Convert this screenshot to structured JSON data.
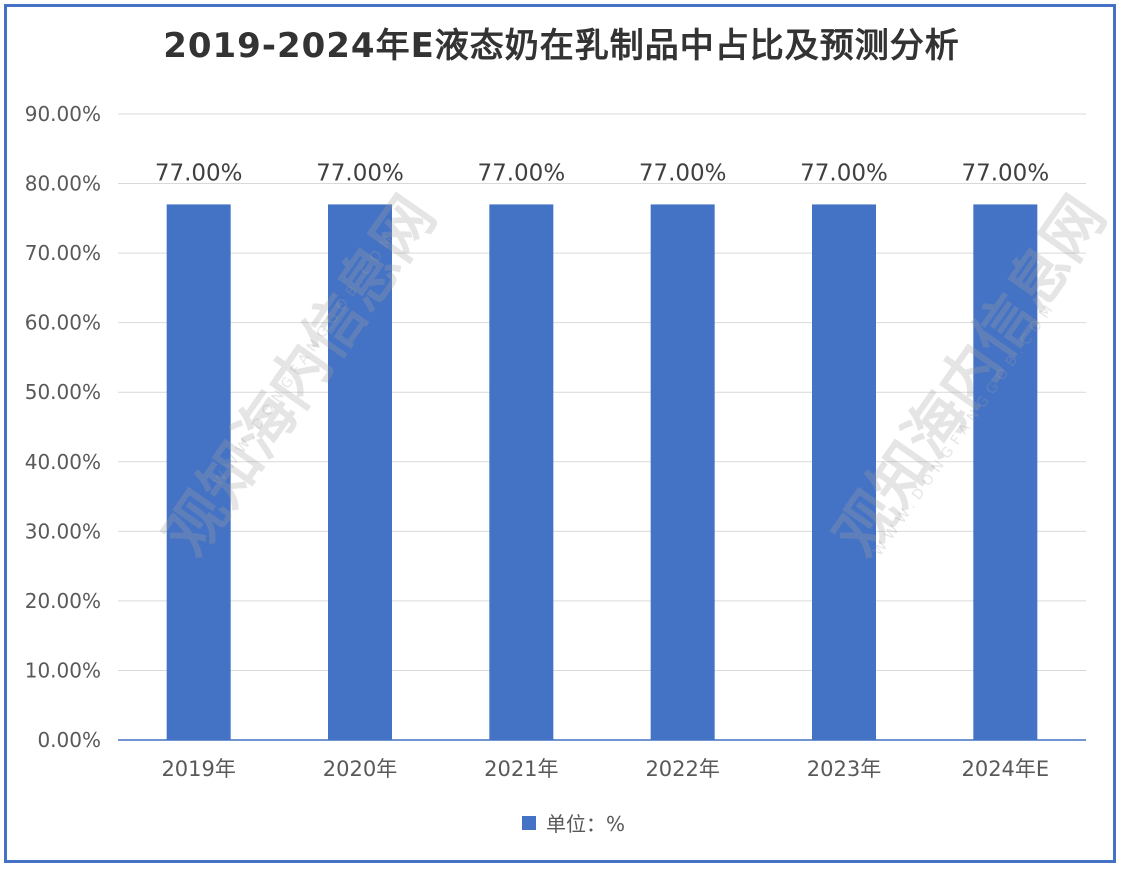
{
  "chart_data": {
    "type": "bar",
    "title": "2019-2024年E液态奶在乳制品中占比及预测分析",
    "categories": [
      "2019年",
      "2020年",
      "2021年",
      "2022年",
      "2023年",
      "2024年E"
    ],
    "series": [
      {
        "name": "单位：%",
        "values": [
          77.0,
          77.0,
          77.0,
          77.0,
          77.0,
          77.0
        ]
      }
    ],
    "data_labels": [
      "77.00%",
      "77.00%",
      "77.00%",
      "77.00%",
      "77.00%",
      "77.00%"
    ],
    "y_ticks": [
      "0.00%",
      "10.00%",
      "20.00%",
      "30.00%",
      "40.00%",
      "50.00%",
      "60.00%",
      "70.00%",
      "80.00%",
      "90.00%"
    ],
    "ylim": [
      0,
      90
    ],
    "grid": true,
    "legend_position": "bottom",
    "xlabel": "",
    "ylabel": ""
  },
  "colors": {
    "bar": "#4472c4",
    "frame": "#4472c4",
    "grid": "#d9d9d9",
    "axis_text": "#595959"
  },
  "watermark": {
    "text": "观知海内信息网",
    "sub": "WWW.DONGFANGGOB.COM"
  }
}
